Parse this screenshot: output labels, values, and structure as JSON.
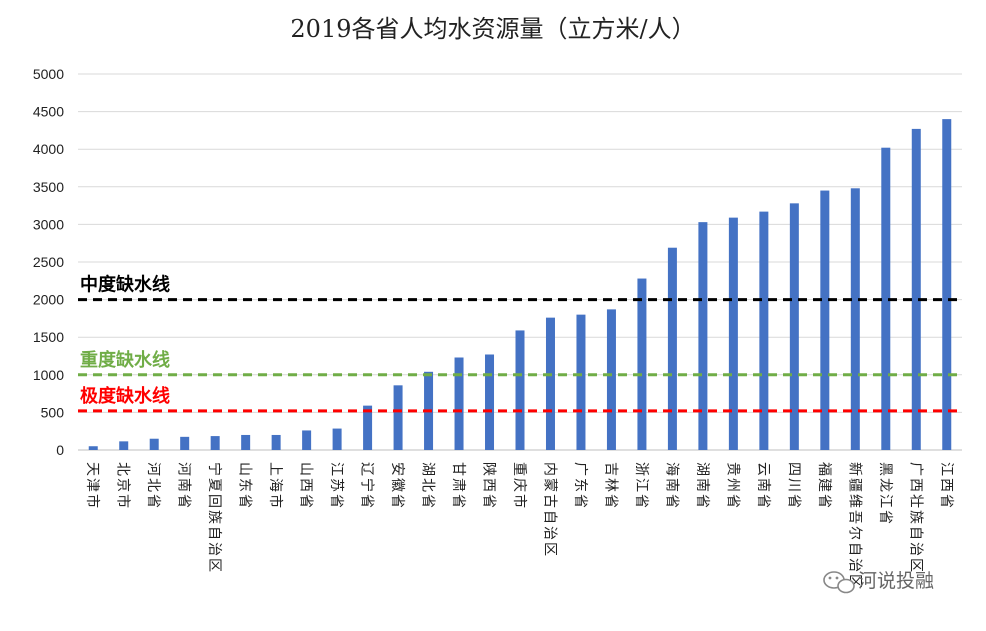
{
  "chart_data": {
    "type": "bar",
    "title": "2019各省人均水资源量（立方米/人）",
    "xlabel": "",
    "ylabel": "",
    "ylim": [
      0,
      5000
    ],
    "yticks": [
      0,
      500,
      1000,
      1500,
      2000,
      2500,
      3000,
      3500,
      4000,
      4500,
      5000
    ],
    "grid": true,
    "bar_color": "#4472C4",
    "categories": [
      "天津市",
      "北京市",
      "河北省",
      "河南省",
      "宁夏回族自治区",
      "山东省",
      "上海市",
      "山西省",
      "江苏省",
      "辽宁省",
      "安徽省",
      "湖北省",
      "甘肃省",
      "陕西省",
      "重庆市",
      "内蒙古自治区",
      "广东省",
      "吉林省",
      "浙江省",
      "海南省",
      "湖南省",
      "贵州省",
      "云南省",
      "四川省",
      "福建省",
      "新疆维吾尔自治区",
      "黑龙江省",
      "广西壮族自治区",
      "江西省"
    ],
    "values": [
      50,
      115,
      150,
      175,
      185,
      200,
      200,
      260,
      285,
      590,
      860,
      1040,
      1230,
      1270,
      1590,
      1760,
      1800,
      1870,
      2280,
      2690,
      3030,
      3090,
      3170,
      3280,
      3450,
      3480,
      4020,
      4270,
      4400
    ],
    "reference_lines": [
      {
        "label": "中度缺水线",
        "value": 2000,
        "color": "#000000"
      },
      {
        "label": "重度缺水线",
        "value": 1000,
        "color": "#70AD47"
      },
      {
        "label": "极度缺水线",
        "value": 520,
        "color": "#FF0000"
      }
    ]
  },
  "watermark": {
    "text": "河说投融",
    "icon": "wechat-icon"
  }
}
